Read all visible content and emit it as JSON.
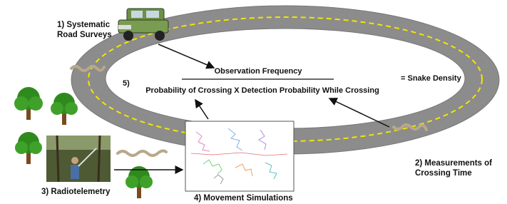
{
  "labels": {
    "road_surveys": [
      "1) Systematic",
      "Road Surveys"
    ],
    "crossing_time": [
      "2) Measurements of",
      "Crossing Time"
    ],
    "radiotelemetry": "3) Radiotelemetry",
    "movement_simulations": "4) Movement Simulations"
  },
  "equation": {
    "number": "5)",
    "numerator": "Observation Frequency",
    "denominator": "Probability of Crossing X Detection Probability While Crossing",
    "result": "= Snake Density"
  }
}
